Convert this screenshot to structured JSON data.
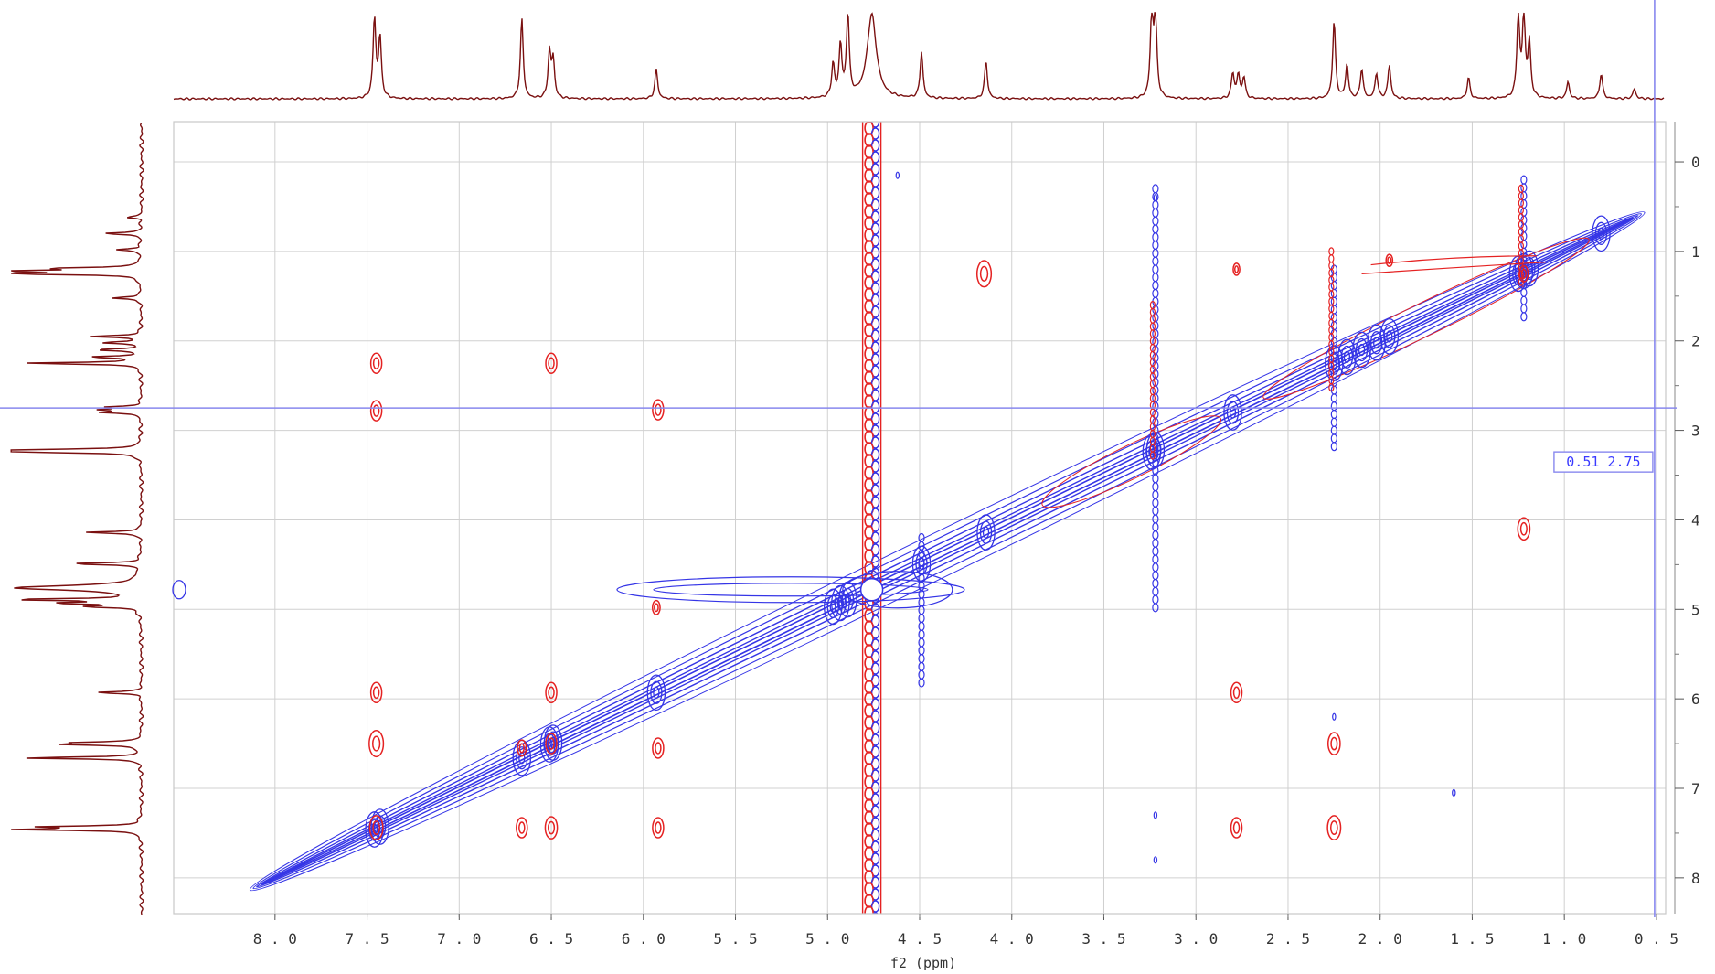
{
  "chart_data": {
    "type": "contour",
    "xlabel": "f2 (ppm)",
    "ylabel": "",
    "x_ticks": [
      "8.0",
      "7.5",
      "7.0",
      "6.5",
      "6.0",
      "5.5",
      "5.0",
      "4.5",
      "4.0",
      "3.5",
      "3.0",
      "2.5",
      "2.0",
      "1.5",
      "1.0",
      "0.5"
    ],
    "y_ticks": [
      "0",
      "1",
      "2",
      "3",
      "4",
      "5",
      "6",
      "7",
      "8"
    ],
    "xlim": [
      8.55,
      0.45
    ],
    "ylim": [
      -0.45,
      8.4
    ],
    "grid": true,
    "cursor": {
      "x": 0.51,
      "y": 2.75,
      "label": "0.51  2.75"
    },
    "colors": {
      "positive": "#e52222",
      "negative": "#3535e6",
      "projection": "#7a1010",
      "grid": "#d0d0d0",
      "cursor": "#8888ee"
    },
    "diagonal": {
      "from": 8.1,
      "to": 0.6
    },
    "solvent_stripe_ppm": 4.76,
    "peaks_1d": [
      {
        "ppm": 7.46,
        "h": 0.95
      },
      {
        "ppm": 7.43,
        "h": 0.72
      },
      {
        "ppm": 6.66,
        "h": 0.95
      },
      {
        "ppm": 6.51,
        "h": 0.55
      },
      {
        "ppm": 6.49,
        "h": 0.45
      },
      {
        "ppm": 5.93,
        "h": 0.35
      },
      {
        "ppm": 4.97,
        "h": 0.4
      },
      {
        "ppm": 4.93,
        "h": 0.62
      },
      {
        "ppm": 4.89,
        "h": 0.98
      },
      {
        "ppm": 4.76,
        "h": 1.0
      },
      {
        "ppm": 4.49,
        "h": 0.55
      },
      {
        "ppm": 4.14,
        "h": 0.45
      },
      {
        "ppm": 3.24,
        "h": 0.98
      },
      {
        "ppm": 3.22,
        "h": 0.98
      },
      {
        "ppm": 2.8,
        "h": 0.3
      },
      {
        "ppm": 2.77,
        "h": 0.28
      },
      {
        "ppm": 2.74,
        "h": 0.25
      },
      {
        "ppm": 2.25,
        "h": 0.92
      },
      {
        "ppm": 2.18,
        "h": 0.4
      },
      {
        "ppm": 2.1,
        "h": 0.35
      },
      {
        "ppm": 2.02,
        "h": 0.3
      },
      {
        "ppm": 1.95,
        "h": 0.4
      },
      {
        "ppm": 1.52,
        "h": 0.25
      },
      {
        "ppm": 1.25,
        "h": 0.98
      },
      {
        "ppm": 1.22,
        "h": 0.98
      },
      {
        "ppm": 1.19,
        "h": 0.65
      },
      {
        "ppm": 0.98,
        "h": 0.2
      },
      {
        "ppm": 0.8,
        "h": 0.3
      },
      {
        "ppm": 0.62,
        "h": 0.12
      }
    ],
    "cross_peaks": [
      {
        "x": 7.45,
        "y": 2.25,
        "s": 1
      },
      {
        "x": 7.45,
        "y": 2.78,
        "s": 1
      },
      {
        "x": 6.5,
        "y": 2.25,
        "s": 1
      },
      {
        "x": 5.92,
        "y": 2.77,
        "s": 1
      },
      {
        "x": 7.45,
        "y": 5.93,
        "s": 1
      },
      {
        "x": 7.45,
        "y": 6.5,
        "s": 1.3
      },
      {
        "x": 7.45,
        "y": 7.44,
        "s": 1.2
      },
      {
        "x": 6.5,
        "y": 5.93,
        "s": 1
      },
      {
        "x": 6.5,
        "y": 6.5,
        "s": 1
      },
      {
        "x": 6.5,
        "y": 7.44,
        "s": 1.1
      },
      {
        "x": 6.66,
        "y": 7.44,
        "s": 1
      },
      {
        "x": 6.66,
        "y": 6.55,
        "s": 0.8
      },
      {
        "x": 5.92,
        "y": 6.55,
        "s": 1
      },
      {
        "x": 5.92,
        "y": 7.44,
        "s": 1
      },
      {
        "x": 5.93,
        "y": 4.98,
        "s": 0.7
      },
      {
        "x": 4.15,
        "y": 1.25,
        "s": 1.3
      },
      {
        "x": 2.78,
        "y": 1.2,
        "s": 0.6
      },
      {
        "x": 2.78,
        "y": 5.93,
        "s": 1
      },
      {
        "x": 2.78,
        "y": 7.44,
        "s": 1
      },
      {
        "x": 2.25,
        "y": 6.5,
        "s": 1.1
      },
      {
        "x": 2.25,
        "y": 7.44,
        "s": 1.2
      },
      {
        "x": 1.22,
        "y": 4.1,
        "s": 1.1
      },
      {
        "x": 1.22,
        "y": 1.25,
        "s": 0.8
      },
      {
        "x": 1.95,
        "y": 1.1,
        "s": 0.6
      }
    ]
  }
}
